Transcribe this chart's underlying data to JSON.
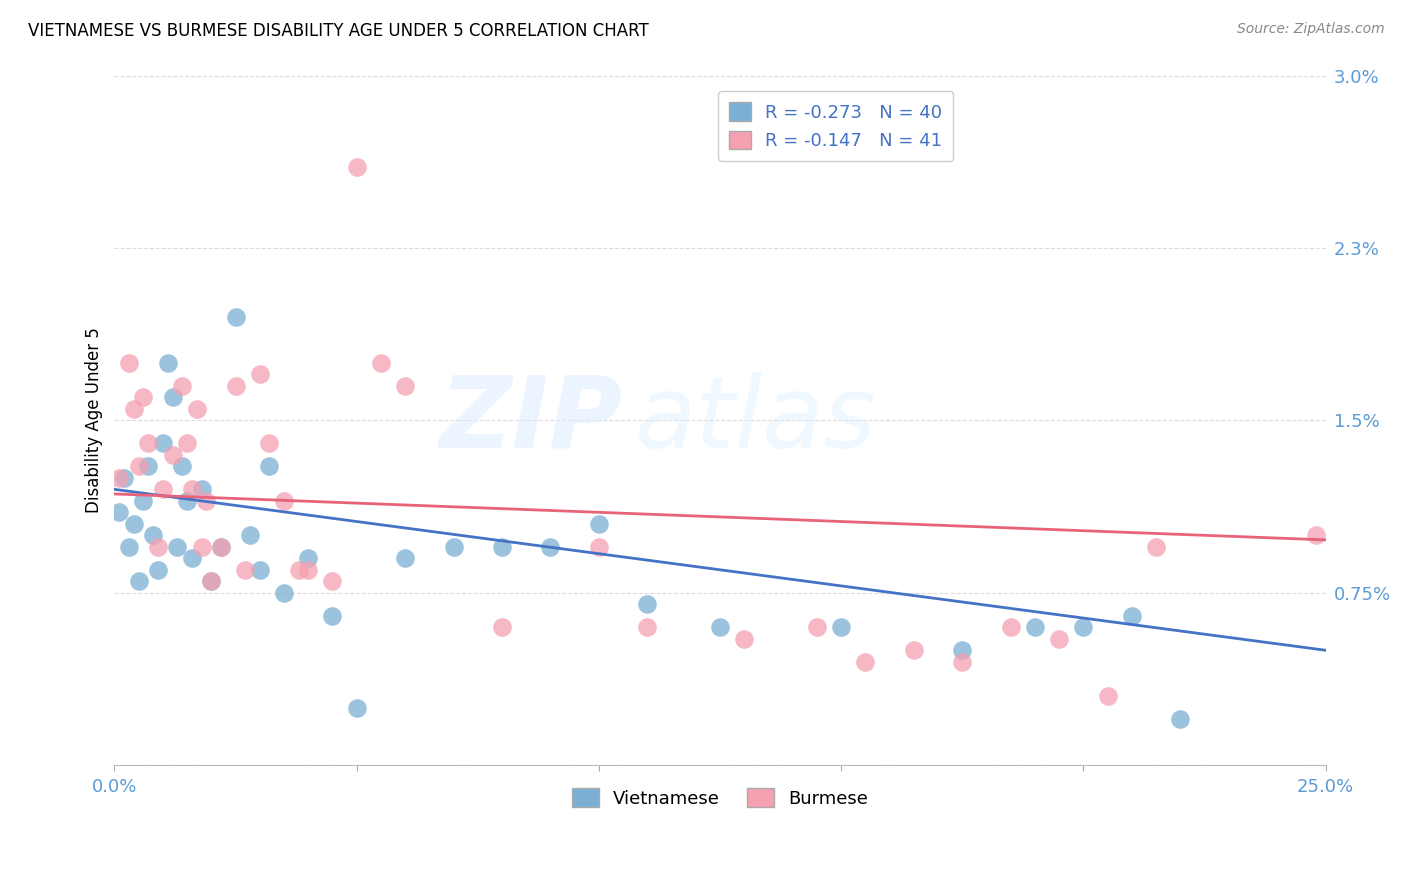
{
  "title": "VIETNAMESE VS BURMESE DISABILITY AGE UNDER 5 CORRELATION CHART",
  "source": "Source: ZipAtlas.com",
  "ylabel_label": "Disability Age Under 5",
  "x_min": 0.0,
  "x_max": 0.25,
  "y_min": 0.0,
  "y_max": 0.03,
  "y_ticks": [
    0.0,
    0.0075,
    0.015,
    0.0225,
    0.03
  ],
  "y_tick_labels": [
    "",
    "0.75%",
    "1.5%",
    "2.3%",
    "3.0%"
  ],
  "x_ticks": [
    0.0,
    0.05,
    0.1,
    0.15,
    0.2,
    0.25
  ],
  "x_tick_labels": [
    "0.0%",
    "",
    "",
    "",
    "",
    "25.0%"
  ],
  "legend_R1": "R = -0.273",
  "legend_N1": "N = 40",
  "legend_R2": "R = -0.147",
  "legend_N2": "N = 41",
  "vietnamese_color": "#7BAFD4",
  "burmese_color": "#F4A0B0",
  "line1_color": "#4472C4",
  "line2_color": "#E8637A",
  "watermark_zip": "ZIP",
  "watermark_atlas": "atlas",
  "background_color": "#FFFFFF",
  "grid_color": "#CCCCCC",
  "tick_color": "#5B9BD5",
  "vietnamese_x": [
    0.001,
    0.002,
    0.003,
    0.004,
    0.005,
    0.006,
    0.007,
    0.008,
    0.009,
    0.01,
    0.011,
    0.012,
    0.013,
    0.014,
    0.015,
    0.016,
    0.018,
    0.02,
    0.022,
    0.025,
    0.028,
    0.03,
    0.032,
    0.035,
    0.04,
    0.045,
    0.05,
    0.06,
    0.07,
    0.08,
    0.09,
    0.1,
    0.11,
    0.125,
    0.15,
    0.175,
    0.19,
    0.2,
    0.21,
    0.22
  ],
  "vietnamese_y": [
    0.011,
    0.0125,
    0.0095,
    0.0105,
    0.008,
    0.0115,
    0.013,
    0.01,
    0.0085,
    0.014,
    0.0175,
    0.016,
    0.0095,
    0.013,
    0.0115,
    0.009,
    0.012,
    0.008,
    0.0095,
    0.0195,
    0.01,
    0.0085,
    0.013,
    0.0075,
    0.009,
    0.0065,
    0.0025,
    0.009,
    0.0095,
    0.0095,
    0.0095,
    0.0105,
    0.007,
    0.006,
    0.006,
    0.005,
    0.006,
    0.006,
    0.0065,
    0.002
  ],
  "burmese_x": [
    0.001,
    0.003,
    0.004,
    0.005,
    0.006,
    0.007,
    0.009,
    0.01,
    0.012,
    0.014,
    0.015,
    0.016,
    0.017,
    0.018,
    0.019,
    0.02,
    0.022,
    0.025,
    0.027,
    0.03,
    0.032,
    0.035,
    0.038,
    0.04,
    0.045,
    0.05,
    0.055,
    0.06,
    0.08,
    0.1,
    0.11,
    0.13,
    0.145,
    0.155,
    0.165,
    0.175,
    0.185,
    0.195,
    0.205,
    0.215,
    0.248
  ],
  "burmese_y": [
    0.0125,
    0.0175,
    0.0155,
    0.013,
    0.016,
    0.014,
    0.0095,
    0.012,
    0.0135,
    0.0165,
    0.014,
    0.012,
    0.0155,
    0.0095,
    0.0115,
    0.008,
    0.0095,
    0.0165,
    0.0085,
    0.017,
    0.014,
    0.0115,
    0.0085,
    0.0085,
    0.008,
    0.026,
    0.0175,
    0.0165,
    0.006,
    0.0095,
    0.006,
    0.0055,
    0.006,
    0.0045,
    0.005,
    0.0045,
    0.006,
    0.0055,
    0.003,
    0.0095,
    0.01
  ]
}
